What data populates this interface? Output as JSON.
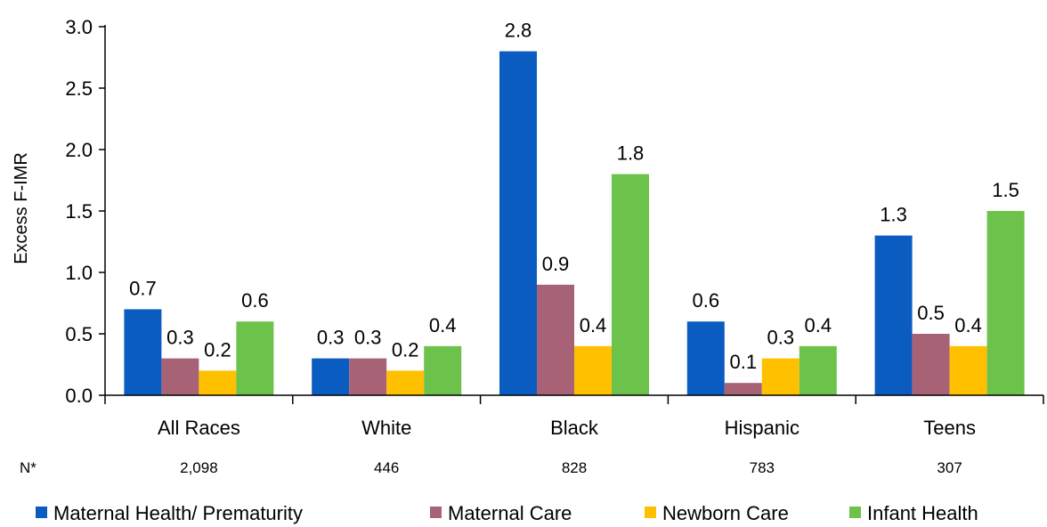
{
  "chart_data": {
    "type": "bar",
    "ylabel": "Excess F-IMR",
    "ylim": [
      0,
      3.0
    ],
    "yticks": [
      "0.0",
      "0.5",
      "1.0",
      "1.5",
      "2.0",
      "2.5",
      "3.0"
    ],
    "categories": [
      "All Races",
      "White",
      "Black",
      "Hispanic",
      "Teens"
    ],
    "n_label": "N*",
    "n_values": [
      "2,098",
      "446",
      "828",
      "783",
      "307"
    ],
    "legend_position": "bottom",
    "series": [
      {
        "name": "Maternal Health/ Prematurity",
        "color": "#0b5cc0",
        "values": [
          0.7,
          0.3,
          2.8,
          0.6,
          1.3
        ],
        "labels": [
          "0.7",
          "0.3",
          "2.8",
          "0.6",
          "1.3"
        ]
      },
      {
        "name": "Maternal Care",
        "color": "#a86276",
        "values": [
          0.3,
          0.3,
          0.9,
          0.1,
          0.5
        ],
        "labels": [
          "0.3",
          "0.3",
          "0.9",
          "0.1",
          "0.5"
        ]
      },
      {
        "name": "Newborn Care",
        "color": "#ffc000",
        "values": [
          0.2,
          0.2,
          0.4,
          0.3,
          0.4
        ],
        "labels": [
          "0.2",
          "0.2",
          "0.4",
          "0.3",
          "0.4"
        ]
      },
      {
        "name": "Infant Health",
        "color": "#6cc24a",
        "values": [
          0.6,
          0.4,
          1.8,
          0.4,
          1.5
        ],
        "labels": [
          "0.6",
          "0.4",
          "1.8",
          "0.4",
          "1.5"
        ]
      }
    ]
  }
}
